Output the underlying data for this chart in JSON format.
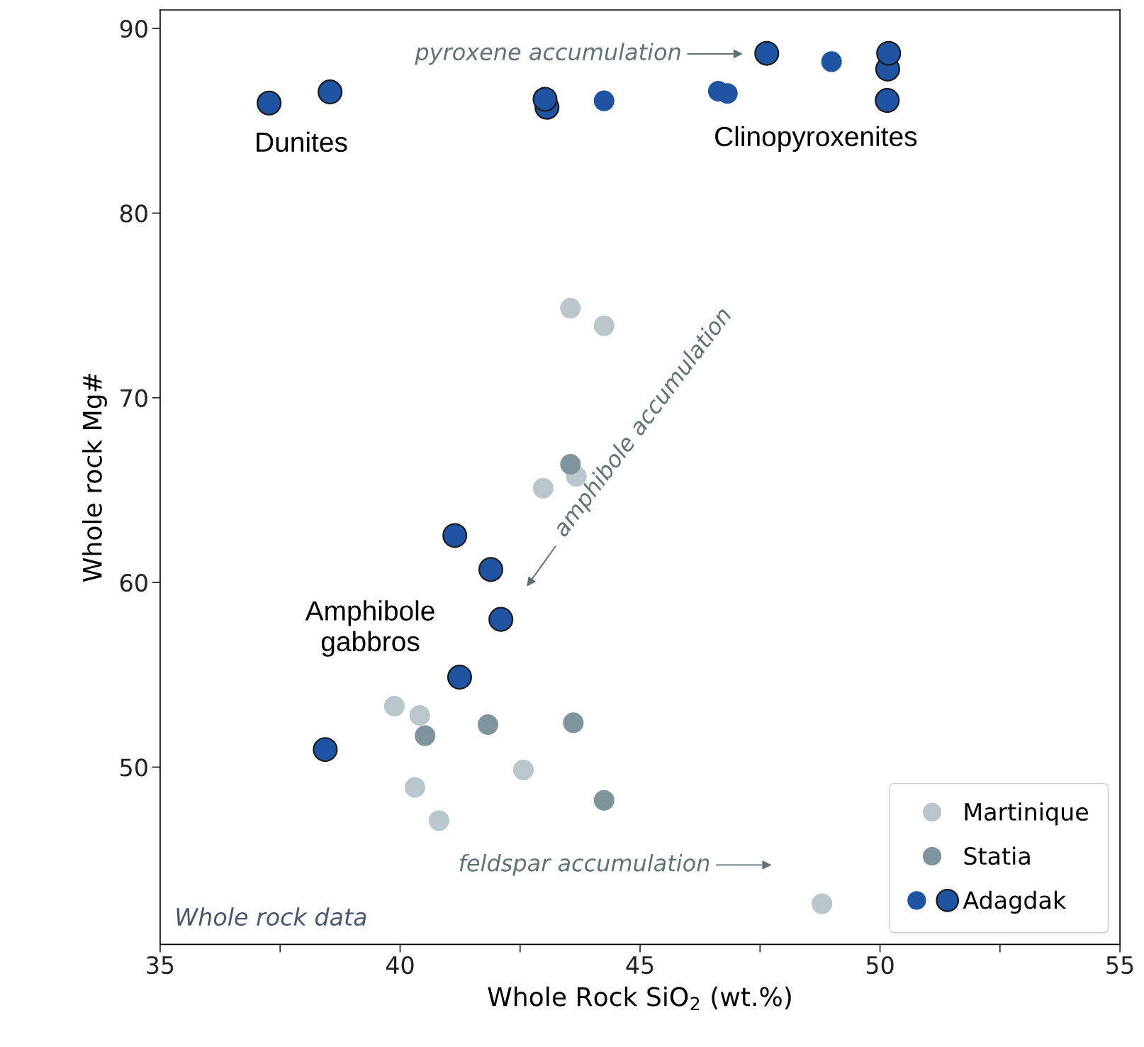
{
  "chart_data": {
    "type": "scatter",
    "xlabel": "Whole Rock SiO$_{2}$ (wt.%)",
    "ylabel": "Whole rock Mg#",
    "xlim": [
      35,
      55
    ],
    "xticks": [
      35,
      {
        "value": 37.5,
        "label": null
      },
      40,
      {
        "value": 42.5,
        "label": null
      },
      45,
      {
        "value": 47.5,
        "label": null
      },
      50,
      {
        "value": 52.5,
        "label": null
      },
      55
    ],
    "ylim": [
      40.4,
      91
    ],
    "yticks": [
      50,
      60,
      70,
      80,
      90
    ],
    "grid": false,
    "legend": "bottom right",
    "marker": "circle",
    "series": [
      {
        "name": "Martinique",
        "color": "#b9c6cc",
        "x": [
          43.55,
          44.25,
          42.98,
          43.67,
          39.88,
          40.41,
          40.31,
          40.81,
          42.57,
          48.79
        ],
        "values": [
          74.85,
          73.9,
          65.1,
          65.75,
          53.3,
          52.8,
          48.9,
          47.1,
          49.85,
          42.6
        ]
      },
      {
        "name": "Statia",
        "color": "#7f959e",
        "x": [
          43.55,
          40.52,
          41.83,
          43.61,
          44.25
        ],
        "values": [
          66.4,
          51.7,
          52.3,
          52.4,
          48.2
        ]
      },
      {
        "name": null,
        "color": "#1f54a3",
        "x": [
          44.25,
          48.99,
          46.63,
          46.82
        ],
        "values": [
          86.08,
          88.2,
          86.6,
          86.48
        ]
      },
      {
        "name": "Adagdak",
        "color": "#1f54a3",
        "x": [
          37.27,
          38.54,
          43.06,
          43.02,
          47.64,
          50.16,
          50.18,
          50.15,
          41.14,
          41.89,
          42.1,
          41.24,
          38.44
        ],
        "values": [
          85.96,
          86.56,
          85.73,
          86.16,
          88.65,
          87.8,
          88.65,
          86.1,
          62.54,
          60.7,
          58.0,
          54.87,
          50.95
        ]
      }
    ],
    "annotations": [
      "pyroxene accumulation",
      "amphibole accumulation",
      "feldspar accumulation",
      "Dunites",
      "Clinopyroxenites",
      "Amphibole\ngabbros",
      "Whole rock data"
    ]
  }
}
